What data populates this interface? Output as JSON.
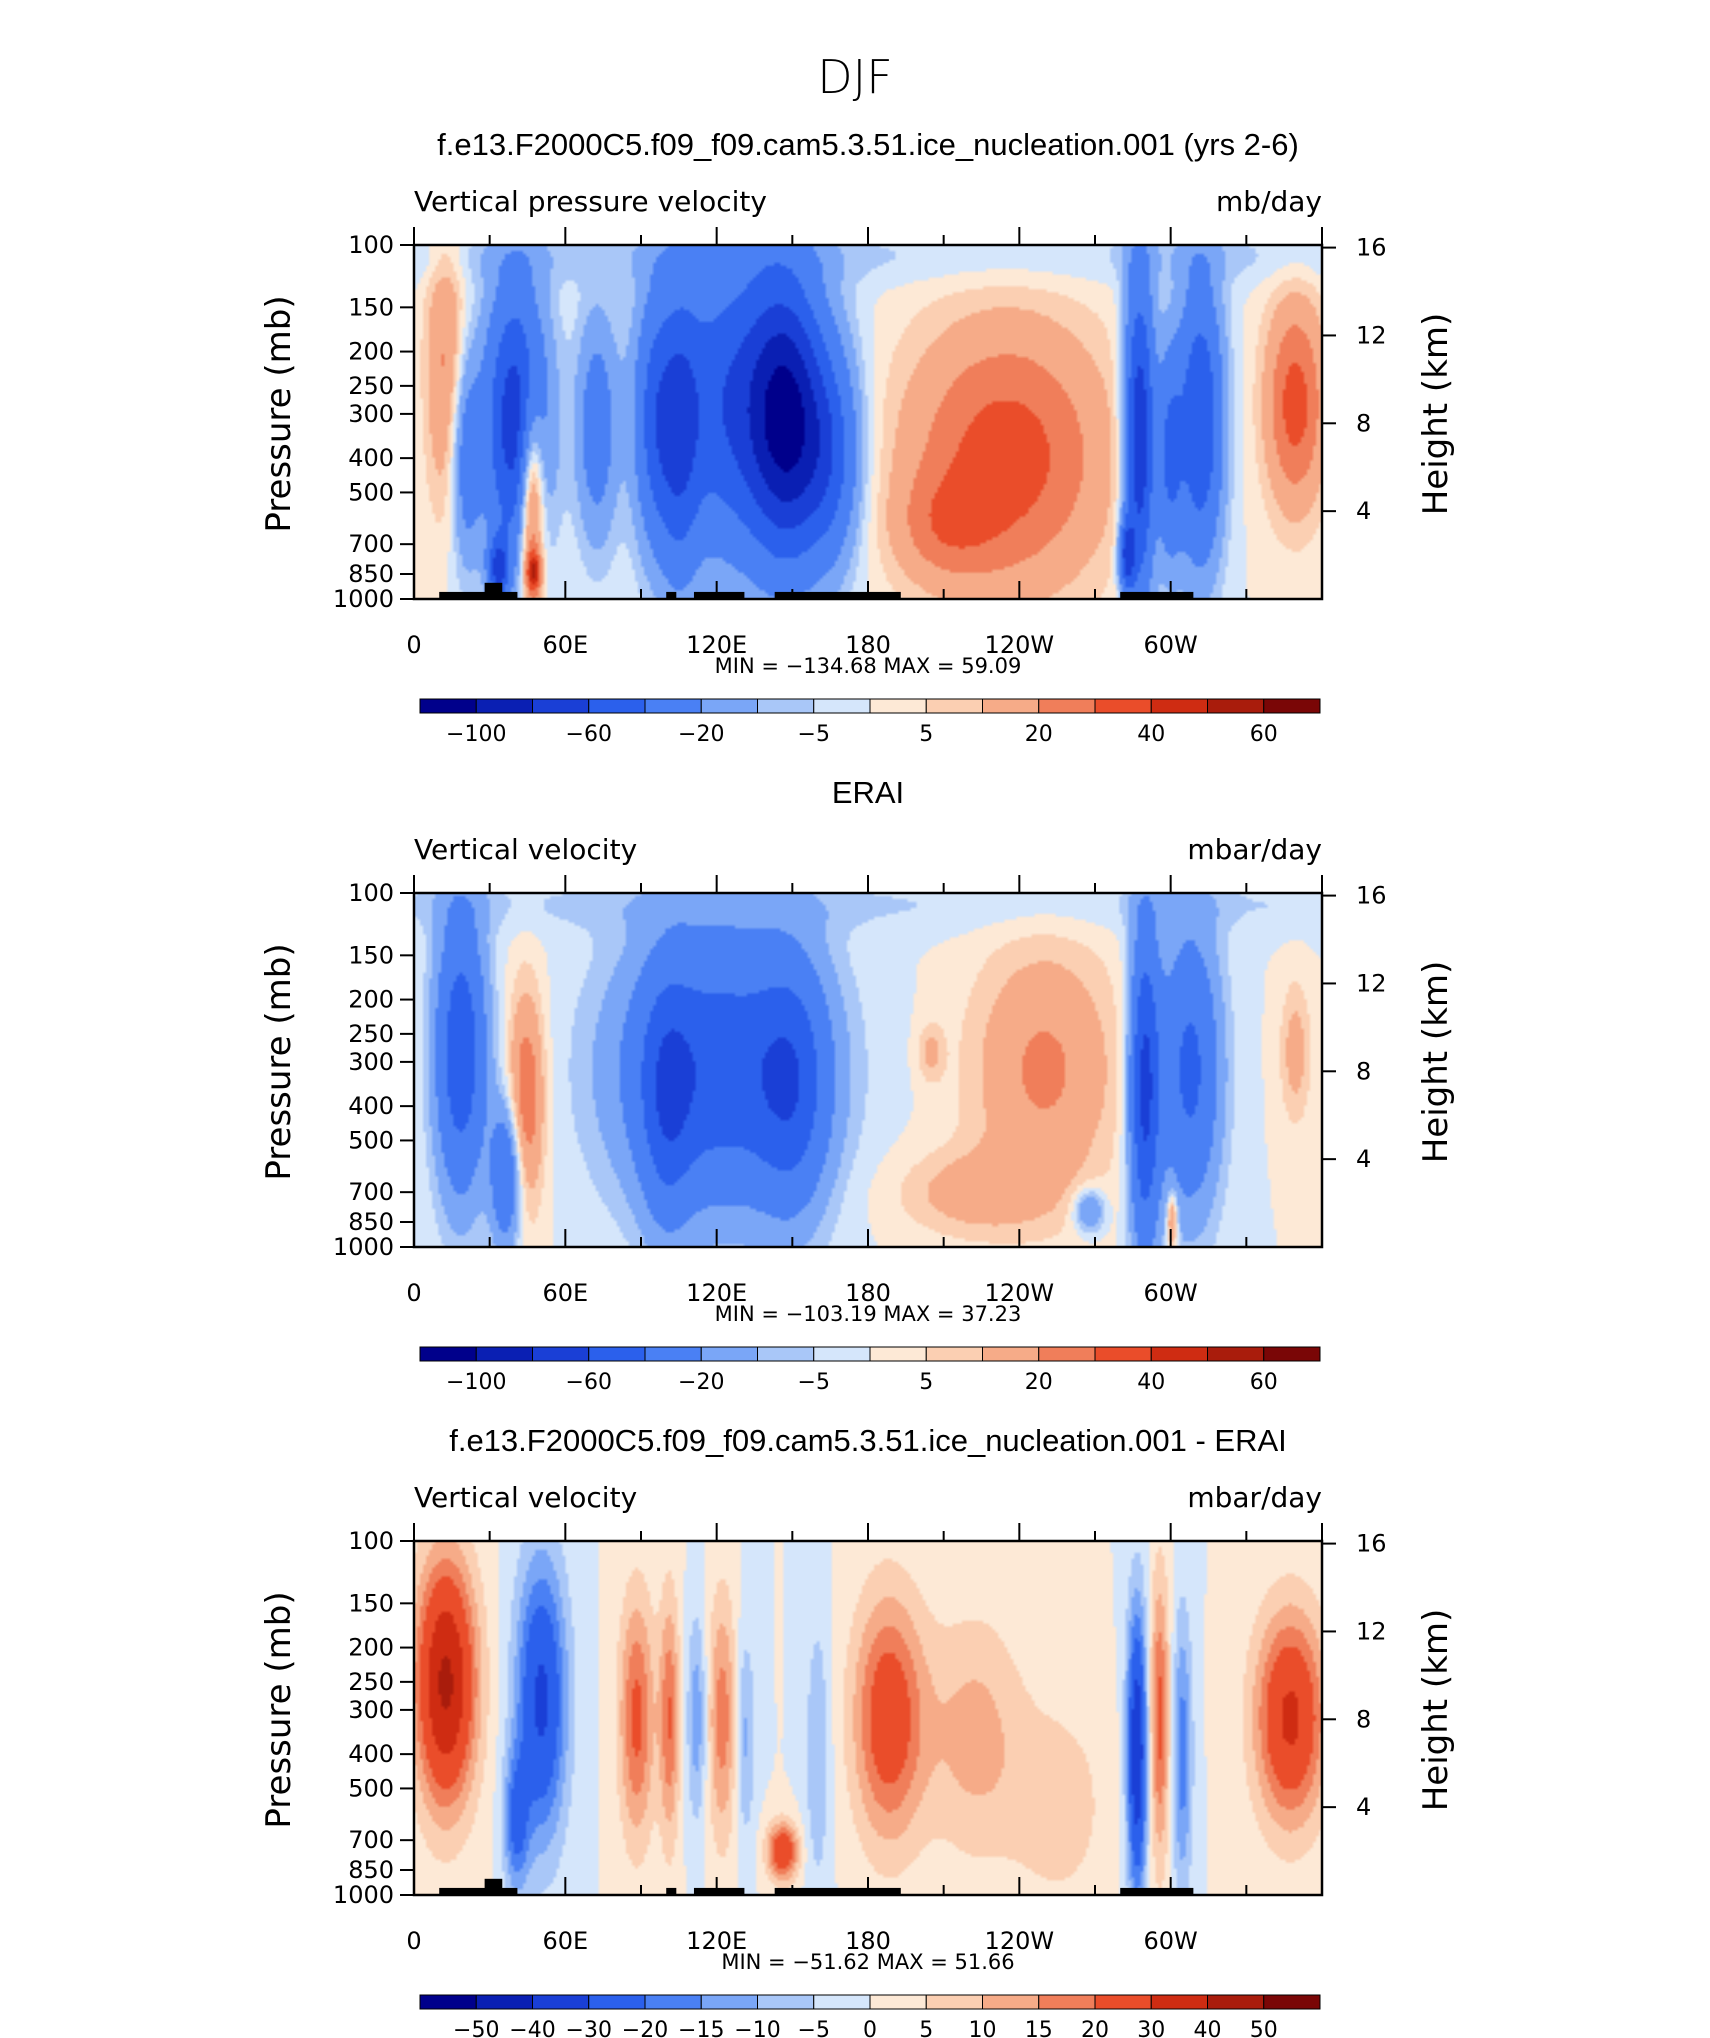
{
  "main_title": "DJF",
  "chart_data": [
    {
      "type": "heatmap",
      "title": "f.e13.F2000C5.f09_f09.cam5.3.51.ice_nucleation.001 (yrs 2-6)",
      "left_label": "Vertical pressure velocity",
      "right_label": "mb/day",
      "ylabel": "Pressure (mb)",
      "ylabel_right": "Height (km)",
      "x_ticks": [
        "0",
        "60E",
        "120E",
        "180",
        "120W",
        "60W"
      ],
      "y_ticks": [
        "100",
        "150",
        "200",
        "250",
        "300",
        "400",
        "500",
        "700",
        "850",
        "1000"
      ],
      "y_ticks_right": [
        "16",
        "12",
        "8",
        "4"
      ],
      "min_max": "MIN = −134.68   MAX =   59.09",
      "colorbar_labels": [
        "−100",
        "−60",
        "−20",
        "−5",
        "5",
        "20",
        "40",
        "60"
      ],
      "xlim": [
        0,
        360
      ],
      "ylim": [
        1000,
        100
      ],
      "y_scale": "log",
      "min": -134.68,
      "max": 59.09
    },
    {
      "type": "heatmap",
      "title": "ERAI",
      "left_label": "Vertical velocity",
      "right_label": "mbar/day",
      "ylabel": "Pressure (mb)",
      "ylabel_right": "Height (km)",
      "x_ticks": [
        "0",
        "60E",
        "120E",
        "180",
        "120W",
        "60W"
      ],
      "y_ticks": [
        "100",
        "150",
        "200",
        "250",
        "300",
        "400",
        "500",
        "700",
        "850",
        "1000"
      ],
      "y_ticks_right": [
        "16",
        "12",
        "8",
        "4"
      ],
      "min_max": "MIN = −103.19   MAX =   37.23",
      "colorbar_labels": [
        "−100",
        "−60",
        "−20",
        "−5",
        "5",
        "20",
        "40",
        "60"
      ],
      "xlim": [
        0,
        360
      ],
      "ylim": [
        1000,
        100
      ],
      "y_scale": "log",
      "min": -103.19,
      "max": 37.23
    },
    {
      "type": "heatmap",
      "title": "f.e13.F2000C5.f09_f09.cam5.3.51.ice_nucleation.001 - ERAI",
      "left_label": "Vertical velocity",
      "right_label": "mbar/day",
      "ylabel": "Pressure (mb)",
      "ylabel_right": "Height (km)",
      "x_ticks": [
        "0",
        "60E",
        "120E",
        "180",
        "120W",
        "60W"
      ],
      "y_ticks": [
        "100",
        "150",
        "200",
        "250",
        "300",
        "400",
        "500",
        "700",
        "850",
        "1000"
      ],
      "y_ticks_right": [
        "16",
        "12",
        "8",
        "4"
      ],
      "min_max": "MIN = −51.62   MAX =   51.66",
      "colorbar_labels": [
        "−50",
        "−40",
        "−30",
        "−20",
        "−15",
        "−10",
        "−5",
        "0",
        "5",
        "10",
        "15",
        "20",
        "30",
        "40",
        "50"
      ],
      "xlim": [
        0,
        360
      ],
      "ylim": [
        1000,
        100
      ],
      "y_scale": "log",
      "min": -51.62,
      "max": 51.66
    }
  ],
  "colors": {
    "blues": [
      "#00008b",
      "#0a1fb3",
      "#1a3fd6",
      "#2b60ec",
      "#4a80f4",
      "#7aa6f7",
      "#a9c7f8",
      "#d5e6fb"
    ],
    "reds": [
      "#fde9d6",
      "#fbcfb2",
      "#f6ab88",
      "#f07e5a",
      "#ea4d2a",
      "#cf2c12",
      "#a91c0c",
      "#7a0606"
    ],
    "topography": "#000000"
  }
}
